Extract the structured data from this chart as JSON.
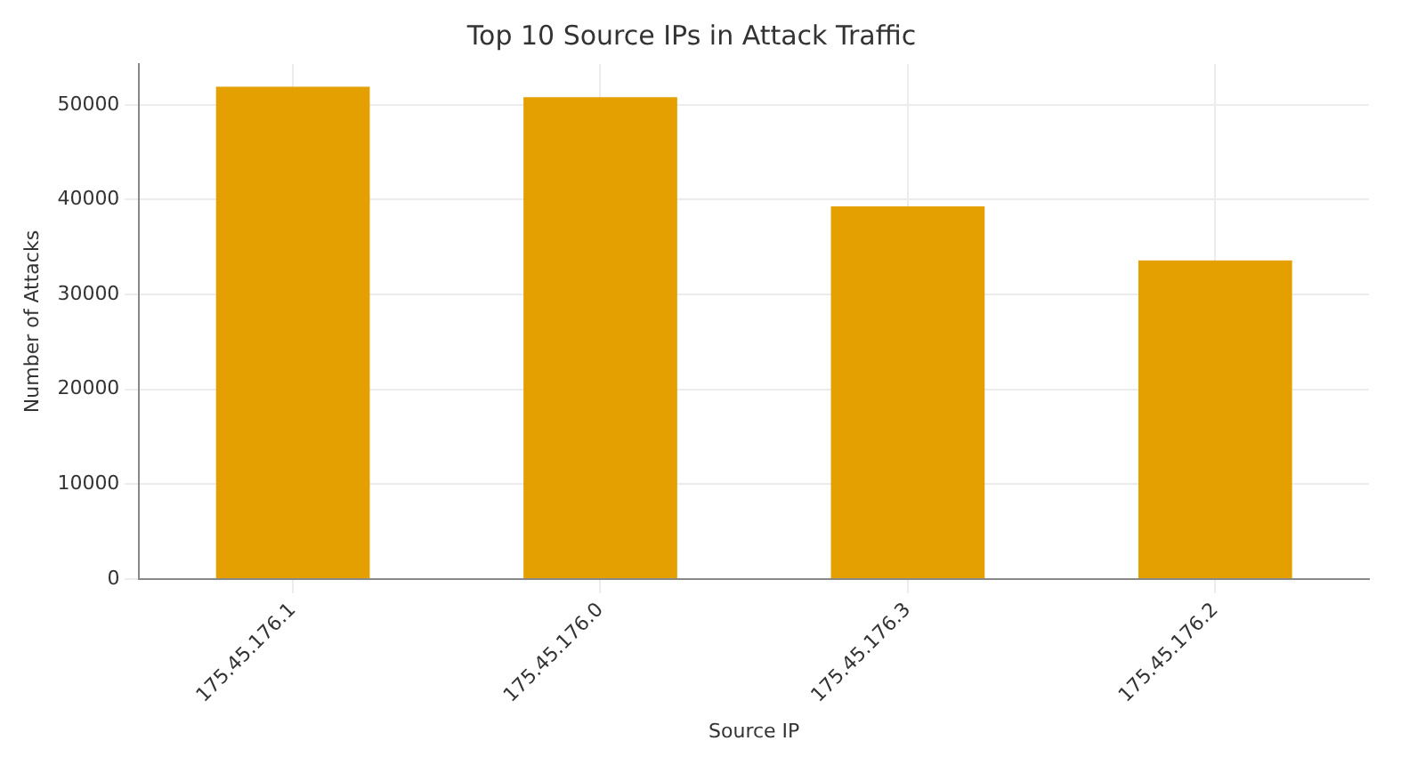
{
  "chart_data": {
    "type": "bar",
    "title": "Top 10 Source IPs in Attack Traffic",
    "xlabel": "Source IP",
    "ylabel": "Number of Attacks",
    "categories": [
      "175.45.176.1",
      "175.45.176.0",
      "175.45.176.3",
      "175.45.176.2"
    ],
    "values": [
      51900,
      50800,
      39300,
      33600
    ],
    "color": "#e3a000",
    "ylim": [
      0,
      54300
    ],
    "yticks": [
      0,
      10000,
      20000,
      30000,
      40000,
      50000
    ],
    "grid": true
  }
}
